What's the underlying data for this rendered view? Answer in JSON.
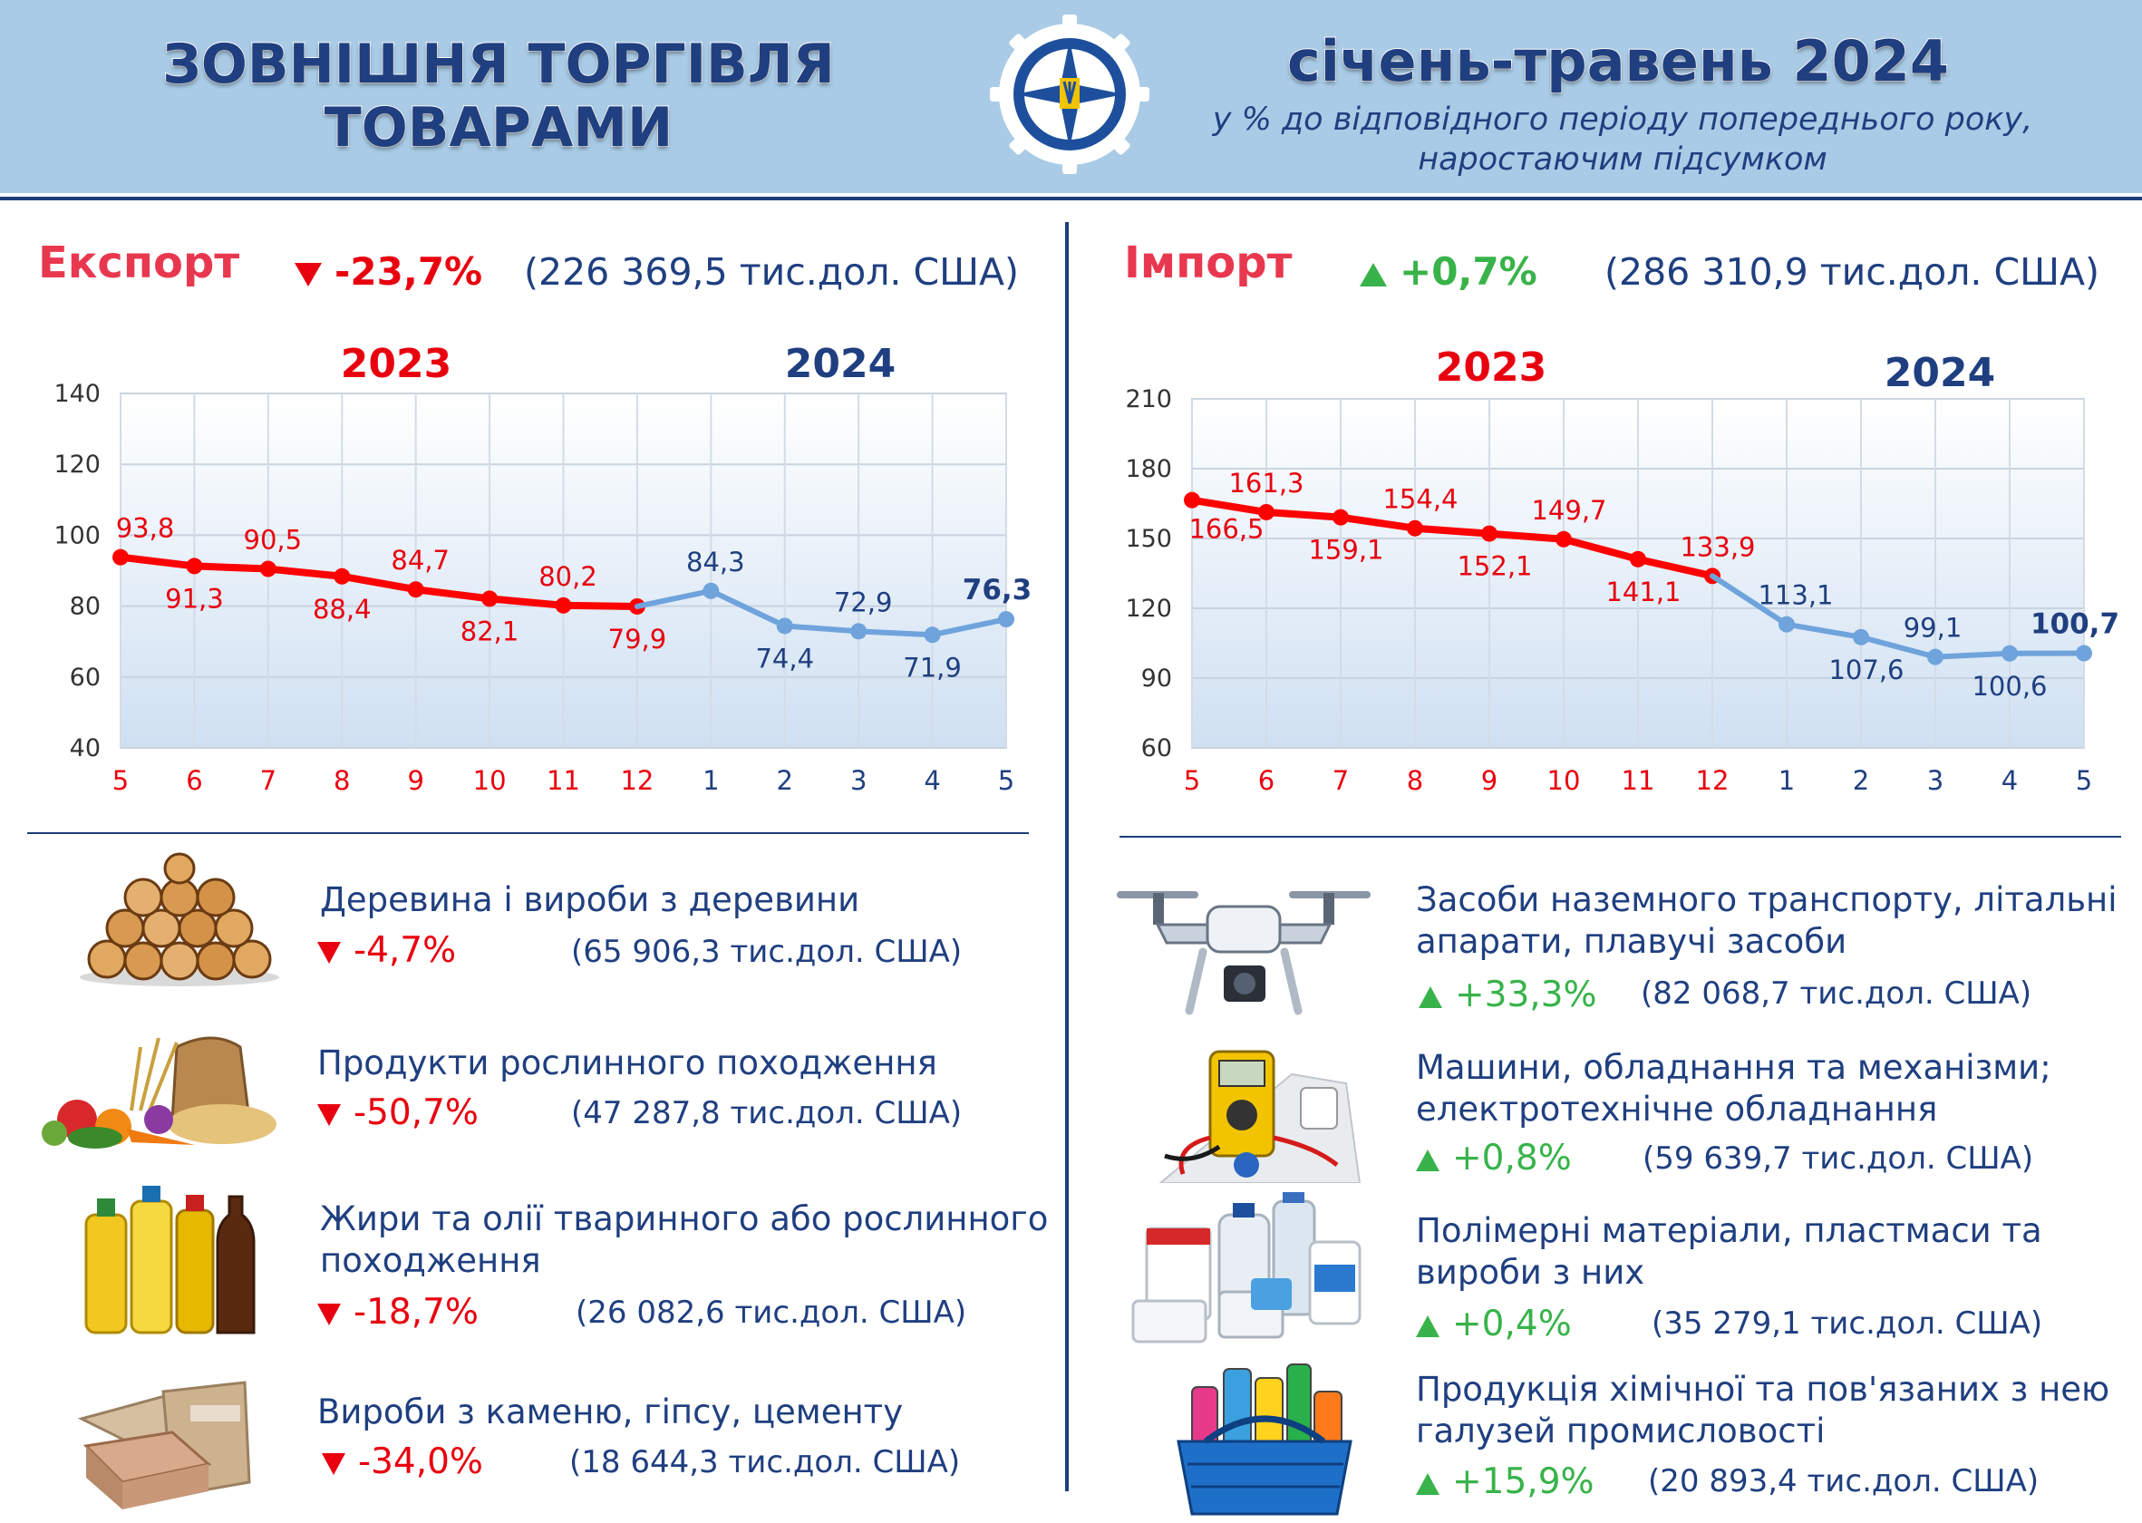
{
  "header": {
    "title_line1": "ЗОВНІШНЯ ТОРГІВЛЯ",
    "title_line2": "ТОВАРАМИ",
    "period": "січень-травень 2024",
    "subtitle_line1": "у % до відповідного періоду попереднього року,",
    "subtitle_line2": "наростаючим підсумком",
    "logo_icon": "state-statistics-service-emblem-icon"
  },
  "export": {
    "title": "Експорт",
    "change": "-23,7%",
    "total": "(226 369,5 тис.дол. США)",
    "items": [
      {
        "name_line1": "Деревина і вироби з деревини",
        "name_line2": "",
        "change": "-4,7%",
        "total": "(65 906,3 тис.дол. США)",
        "icon": "firewood-logs-icon"
      },
      {
        "name_line1": "Продукти рослинного походження",
        "name_line2": "",
        "change": "-50,7%",
        "total": "(47 287,8 тис.дол. США)",
        "icon": "vegetables-grain-icon"
      },
      {
        "name_line1": "Жири та олії тваринного або рослинного",
        "name_line2": "походження",
        "change": "-18,7%",
        "total": "(26 082,6 тис.дол. США)",
        "icon": "oil-bottles-icon"
      },
      {
        "name_line1": "Вироби з каменю, гіпсу, цементу",
        "name_line2": "",
        "change": "-34,0%",
        "total": "(18 644,3 тис.дол. США)",
        "icon": "cement-bags-icon"
      }
    ]
  },
  "import": {
    "title": "Імпорт",
    "change": "+0,7%",
    "total": "(286 310,9 тис.дол. США)",
    "items": [
      {
        "name_line1": "Засоби наземного транспорту, літальні",
        "name_line2": "апарати, плавучі засоби",
        "change": "+33,3%",
        "total": "(82 068,7 тис.дол. США)",
        "icon": "drone-icon"
      },
      {
        "name_line1": "Машини, обладнання та механізми;",
        "name_line2": "електротехнічне обладнання",
        "change": "+0,8%",
        "total": "(59 639,7 тис.дол. США)",
        "icon": "multimeter-icon"
      },
      {
        "name_line1": "Полімерні матеріали, пластмаси та",
        "name_line2": "вироби з них",
        "change": "+0,4%",
        "total": "(35 279,1 тис.дол. США)",
        "icon": "plastic-containers-icon"
      },
      {
        "name_line1": "Продукція хімічної та пов'язаних з нею",
        "name_line2": "галузей промисловості",
        "change": "+15,9%",
        "total": "(20 893,4 тис.дол. США)",
        "icon": "cleaning-basket-icon"
      }
    ]
  },
  "colors": {
    "decline": "#e8000f",
    "increase": "#38b34a",
    "line2023": "#ff0000",
    "line2024": "#6fa3dc",
    "navy": "#1f3f80"
  },
  "chart_data": [
    {
      "type": "line",
      "title": "",
      "categories": [
        "5",
        "6",
        "7",
        "8",
        "9",
        "10",
        "11",
        "12",
        "1",
        "2",
        "3",
        "4",
        "5"
      ],
      "year_labels": [
        "2023",
        "2024"
      ],
      "series": [
        {
          "name": "2023",
          "values": [
            93.8,
            91.3,
            90.5,
            88.4,
            84.7,
            82.1,
            80.2,
            79.9,
            null,
            null,
            null,
            null,
            null
          ]
        },
        {
          "name": "2024",
          "values": [
            null,
            null,
            null,
            null,
            null,
            null,
            null,
            79.9,
            84.3,
            74.4,
            72.9,
            71.9,
            76.3
          ]
        }
      ],
      "labels": [
        "93,8",
        "91,3",
        "90,5",
        "88,4",
        "84,7",
        "82,1",
        "80,2",
        "79,9",
        "84,3",
        "74,4",
        "72,9",
        "71,9",
        "76,3"
      ],
      "yticks": [
        "40",
        "60",
        "80",
        "100",
        "120",
        "140"
      ],
      "ylim": [
        40,
        140
      ],
      "grid": true
    },
    {
      "type": "line",
      "title": "",
      "categories": [
        "5",
        "6",
        "7",
        "8",
        "9",
        "10",
        "11",
        "12",
        "1",
        "2",
        "3",
        "4",
        "5"
      ],
      "year_labels": [
        "2023",
        "2024"
      ],
      "series": [
        {
          "name": "2023",
          "values": [
            166.5,
            161.3,
            159.1,
            154.4,
            152.1,
            149.7,
            141.1,
            133.9,
            null,
            null,
            null,
            null,
            null
          ]
        },
        {
          "name": "2024",
          "values": [
            null,
            null,
            null,
            null,
            null,
            null,
            null,
            133.9,
            113.1,
            107.6,
            99.1,
            100.6,
            100.7
          ]
        }
      ],
      "labels": [
        "166,5",
        "161,3",
        "159,1",
        "154,4",
        "152,1",
        "149,7",
        "141,1",
        "133,9",
        "113,1",
        "107,6",
        "99,1",
        "100,6",
        "100,7"
      ],
      "yticks": [
        "60",
        "90",
        "120",
        "150",
        "180",
        "210"
      ],
      "ylim": [
        60,
        210
      ],
      "grid": true
    }
  ]
}
